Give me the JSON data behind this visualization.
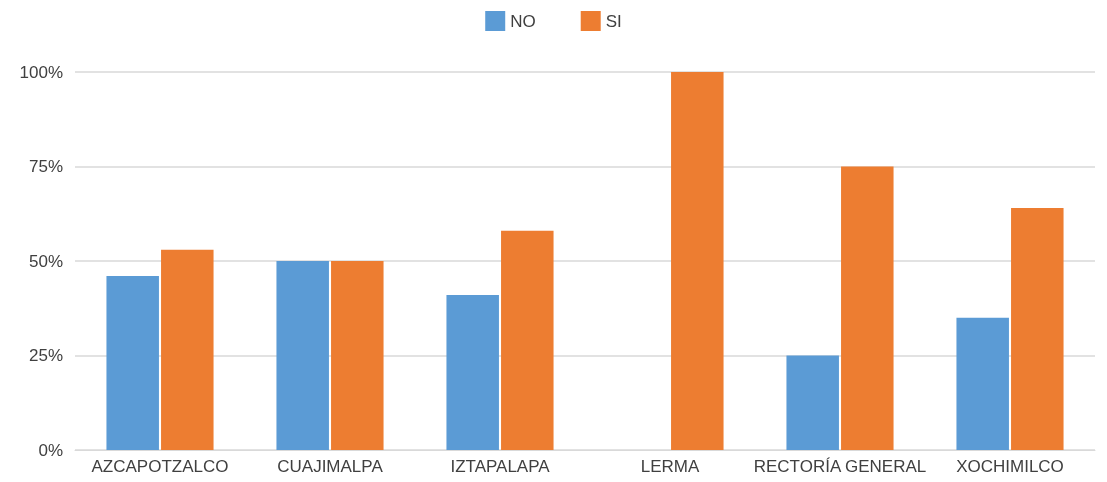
{
  "chart_data": {
    "type": "bar",
    "categories": [
      "AZCAPOTZALCO",
      "CUAJIMALPA",
      "IZTAPALAPA",
      "LERMA",
      "RECTORÍA GENERAL",
      "XOCHIMILCO"
    ],
    "series": [
      {
        "name": "NO",
        "color": "#5b9bd5",
        "values": [
          46,
          50,
          41,
          0,
          25,
          35
        ]
      },
      {
        "name": "SI",
        "color": "#ed7d31",
        "values": [
          53,
          50,
          58,
          100,
          75,
          64
        ]
      }
    ],
    "ylim": [
      0,
      100
    ],
    "yticks": [
      {
        "value": 0,
        "label": "0%"
      },
      {
        "value": 25,
        "label": "25%"
      },
      {
        "value": 50,
        "label": "50%"
      },
      {
        "value": 75,
        "label": "75%"
      },
      {
        "value": 100,
        "label": "100%"
      }
    ],
    "grid": "y",
    "legend": "top"
  }
}
